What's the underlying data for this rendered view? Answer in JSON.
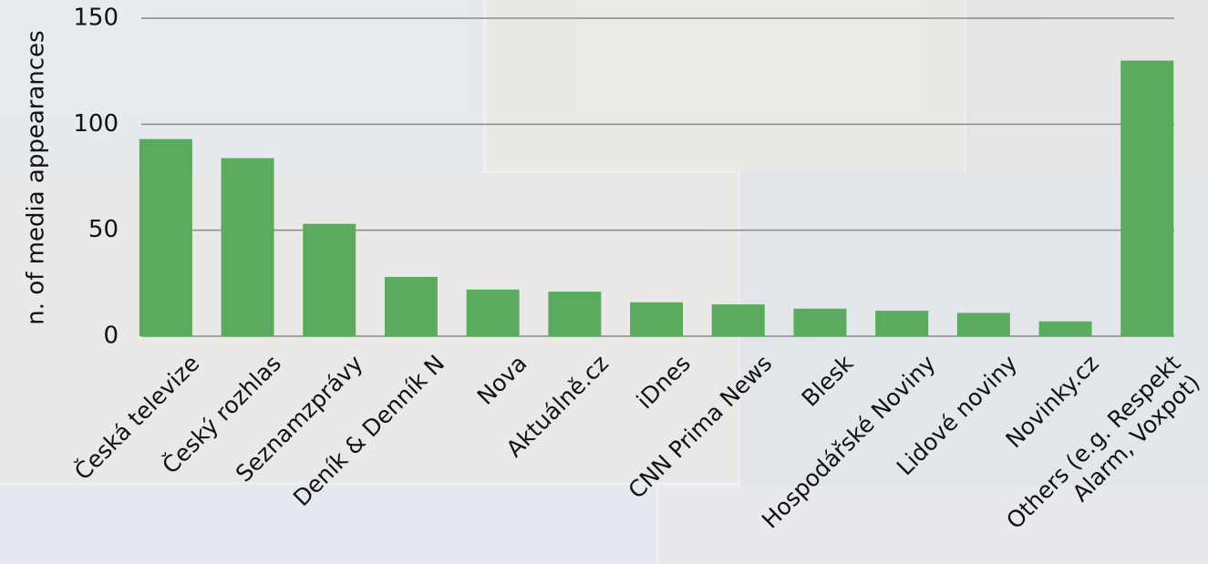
{
  "chart_data": {
    "type": "bar",
    "y_label": "n. of media appearances",
    "categories": [
      "Česká televize",
      "Český rozhlas",
      "Seznamzprávy",
      "Deník & Denník N",
      "Nova",
      "Aktuálně.cz",
      "iDnes",
      "CNN Prima News",
      "Blesk",
      "Hospodářské Noviny",
      "Lidové noviny",
      "Novinky.cz",
      "Others (e.g. Respekt\nAlarm, Voxpot)"
    ],
    "values": [
      93,
      84,
      53,
      28,
      22,
      21,
      16,
      15,
      13,
      12,
      11,
      7,
      130
    ],
    "color": "#5aab5e",
    "ylim": [
      0,
      150
    ],
    "yticks": [
      0,
      50,
      100,
      150
    ],
    "grid": true
  }
}
